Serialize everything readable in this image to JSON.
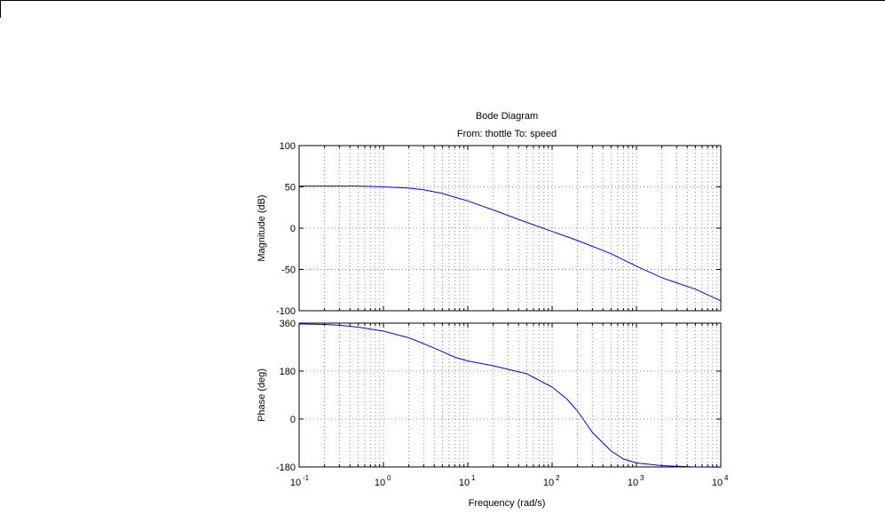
{
  "chart_data": {
    "type": "line",
    "title": "Bode Diagram",
    "subtitle": "From: thottle  To: speed",
    "xlabel": "Frequency  (rad/s)",
    "xscale": "log",
    "xlim": [
      0.1,
      10000
    ],
    "x_ticks": [
      {
        "base": "10",
        "exp": "-1"
      },
      {
        "base": "10",
        "exp": "0"
      },
      {
        "base": "10",
        "exp": "1"
      },
      {
        "base": "10",
        "exp": "2"
      },
      {
        "base": "10",
        "exp": "3"
      },
      {
        "base": "10",
        "exp": "4"
      }
    ],
    "grid": true,
    "line_color": "#0000ff",
    "panels": [
      {
        "name": "magnitude",
        "ylabel": "Magnitude (dB)",
        "ylim": [
          -100,
          100
        ],
        "yticks": [
          100,
          50,
          0,
          -50,
          -100
        ],
        "ytick_labels": [
          "100",
          "50",
          "0",
          "-50",
          "-100"
        ],
        "series": [
          {
            "x": [
              0.1,
              0.2,
              0.5,
              1,
              2,
              3,
              5,
              7,
              10,
              20,
              50,
              100,
              200,
              500,
              1000,
              2000,
              5000,
              10000
            ],
            "y": [
              51,
              51,
              51,
              50,
              48.5,
              46.5,
              42,
              37.5,
              33,
              22,
              7,
              -4,
              -15,
              -31,
              -46,
              -60,
              -74,
              -88
            ]
          }
        ]
      },
      {
        "name": "phase",
        "ylabel": "Phase (deg)",
        "ylim": [
          -180,
          360
        ],
        "yticks": [
          360,
          180,
          0,
          -180
        ],
        "ytick_labels": [
          "360",
          "180",
          "0",
          "-180"
        ],
        "series": [
          {
            "x": [
              0.1,
              0.2,
              0.3,
              0.5,
              1,
              2,
              3,
              5,
              7,
              10,
              20,
              50,
              100,
              150,
              200,
              300,
              500,
              700,
              1000,
              2000,
              5000,
              10000
            ],
            "y": [
              357,
              355,
              352,
              345,
              330,
              305,
              283,
              253,
              232,
              218,
              200,
              170,
              120,
              75,
              30,
              -50,
              -120,
              -150,
              -165,
              -175,
              -180,
              -181
            ]
          }
        ]
      }
    ]
  }
}
